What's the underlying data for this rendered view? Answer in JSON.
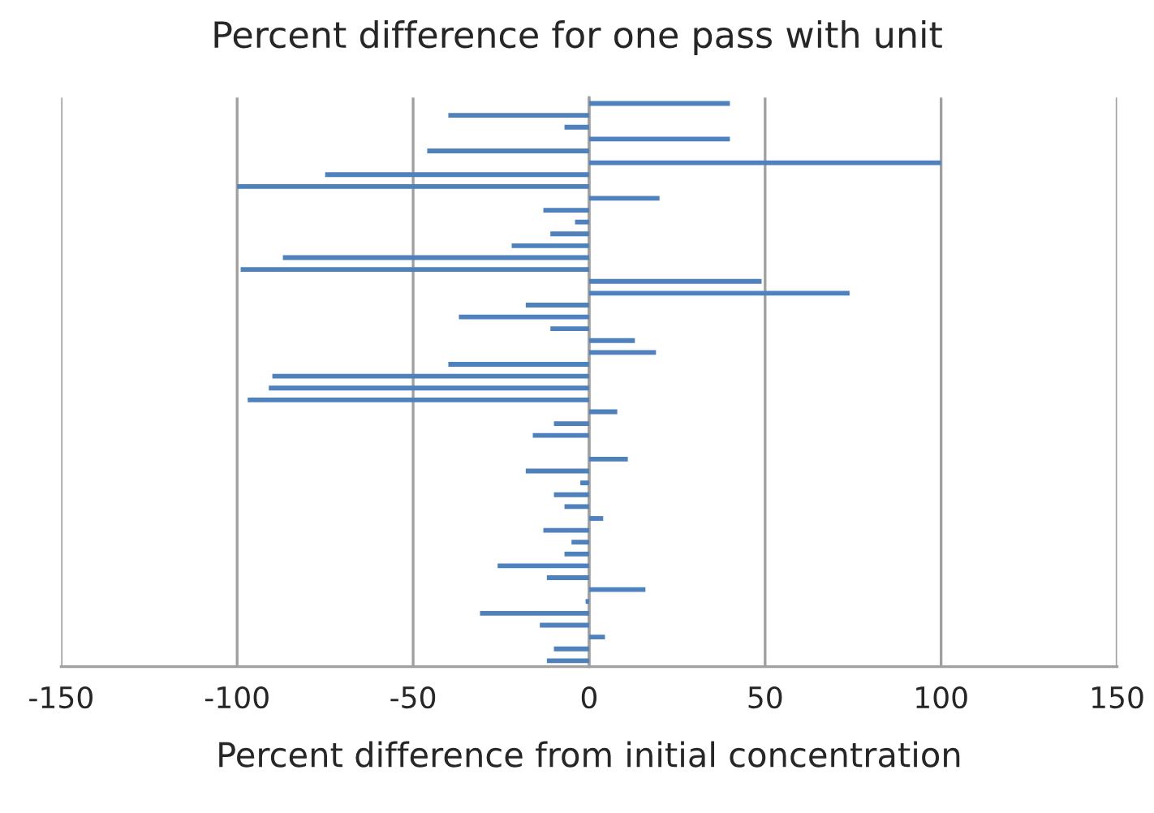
{
  "chart_data": {
    "type": "bar",
    "orientation": "horizontal",
    "title": "Percent difference for one pass with unit",
    "xlabel": "Percent difference from initial concentration",
    "categories": [
      null,
      null,
      null,
      null,
      null,
      null,
      null,
      null,
      null,
      null,
      null,
      null,
      null,
      null,
      null,
      null,
      null,
      null,
      null,
      null,
      null,
      null,
      null,
      null,
      null,
      null,
      null,
      null,
      null,
      null,
      null,
      null,
      null,
      null,
      null,
      null,
      null,
      null,
      null,
      null,
      null,
      null,
      null,
      null,
      null,
      null,
      null,
      null
    ],
    "values": [
      40,
      -40,
      -7,
      40,
      -46,
      100,
      -75,
      -100,
      20,
      -13,
      -4,
      -11,
      -22,
      -87,
      -99,
      49,
      74,
      -18,
      -37,
      -11,
      13,
      19,
      -40,
      -90,
      -91,
      -97,
      8,
      -10,
      -16,
      0,
      11,
      -18,
      -2.5,
      -10,
      -7,
      4,
      -13,
      -5,
      -7,
      -26,
      -12,
      16,
      -1,
      -31,
      -14,
      4.5,
      -10,
      -12
    ],
    "color": "#4f81bd",
    "xlim": [
      -150,
      150
    ],
    "xticks": [
      -150,
      -100,
      -50,
      0,
      50,
      100,
      150
    ],
    "grid": "x",
    "legend": false
  }
}
